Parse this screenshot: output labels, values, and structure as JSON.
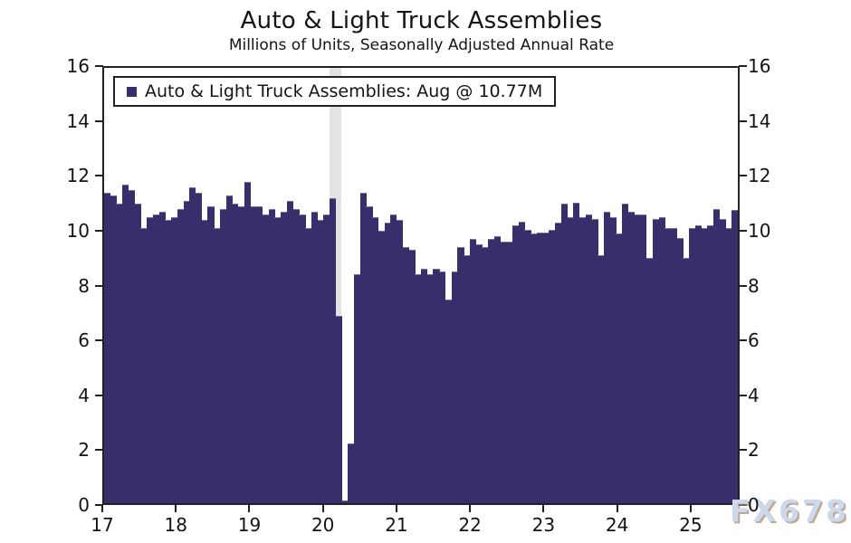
{
  "chart_data": {
    "type": "bar",
    "title": "Auto & Light Truck Assemblies",
    "subtitle": "Millions of Units, Seasonally Adjusted Annual Rate",
    "legend_label": "Auto & Light Truck Assemblies: Aug @ 10.77M",
    "watermark": "FX678",
    "bar_color": "#372F6B",
    "recession_band_color": "#E3E3E3",
    "ylim": [
      0,
      16
    ],
    "y_ticks": [
      0,
      2,
      4,
      6,
      8,
      10,
      12,
      14,
      16
    ],
    "x_tick_labels": [
      "17",
      "18",
      "19",
      "20",
      "21",
      "22",
      "23",
      "24",
      "25"
    ],
    "recession_shading": {
      "from": "2020-02",
      "to": "2020-04",
      "start_month_index": 37,
      "end_month_index": 39
    },
    "latest_point": {
      "month": "Aug",
      "year": 2025,
      "value": 10.77,
      "display": "Aug @ 10.77M"
    },
    "series": [
      {
        "name": "Auto & Light Truck Assemblies",
        "unit": "millions of units, SAAR",
        "start": "2017-01",
        "frequency": "monthly",
        "values": [
          11.4,
          11.3,
          11.0,
          11.7,
          11.5,
          11.0,
          10.1,
          10.5,
          10.6,
          10.7,
          10.4,
          10.5,
          10.8,
          11.1,
          11.6,
          11.4,
          10.4,
          10.9,
          10.1,
          10.8,
          11.3,
          11.0,
          10.9,
          11.8,
          10.9,
          10.9,
          10.6,
          10.8,
          10.5,
          10.7,
          11.1,
          10.8,
          10.6,
          10.1,
          10.7,
          10.4,
          10.6,
          11.2,
          6.9,
          0.1,
          2.2,
          8.4,
          11.4,
          10.9,
          10.5,
          10.0,
          10.3,
          10.6,
          10.4,
          9.4,
          9.3,
          8.4,
          8.6,
          8.4,
          8.6,
          8.5,
          7.5,
          8.5,
          9.4,
          9.1,
          9.7,
          9.5,
          9.4,
          9.7,
          9.8,
          9.6,
          9.6,
          10.2,
          10.35,
          10.05,
          9.9,
          9.95,
          9.95,
          10.05,
          10.3,
          11.0,
          10.5,
          11.05,
          10.5,
          10.6,
          10.45,
          9.1,
          10.7,
          10.5,
          9.9,
          11.0,
          10.7,
          10.6,
          10.6,
          9.0,
          10.45,
          10.5,
          10.1,
          10.1,
          9.75,
          9.0,
          10.1,
          10.2,
          10.1,
          10.2,
          10.8,
          10.45,
          10.1,
          10.77
        ]
      }
    ]
  }
}
